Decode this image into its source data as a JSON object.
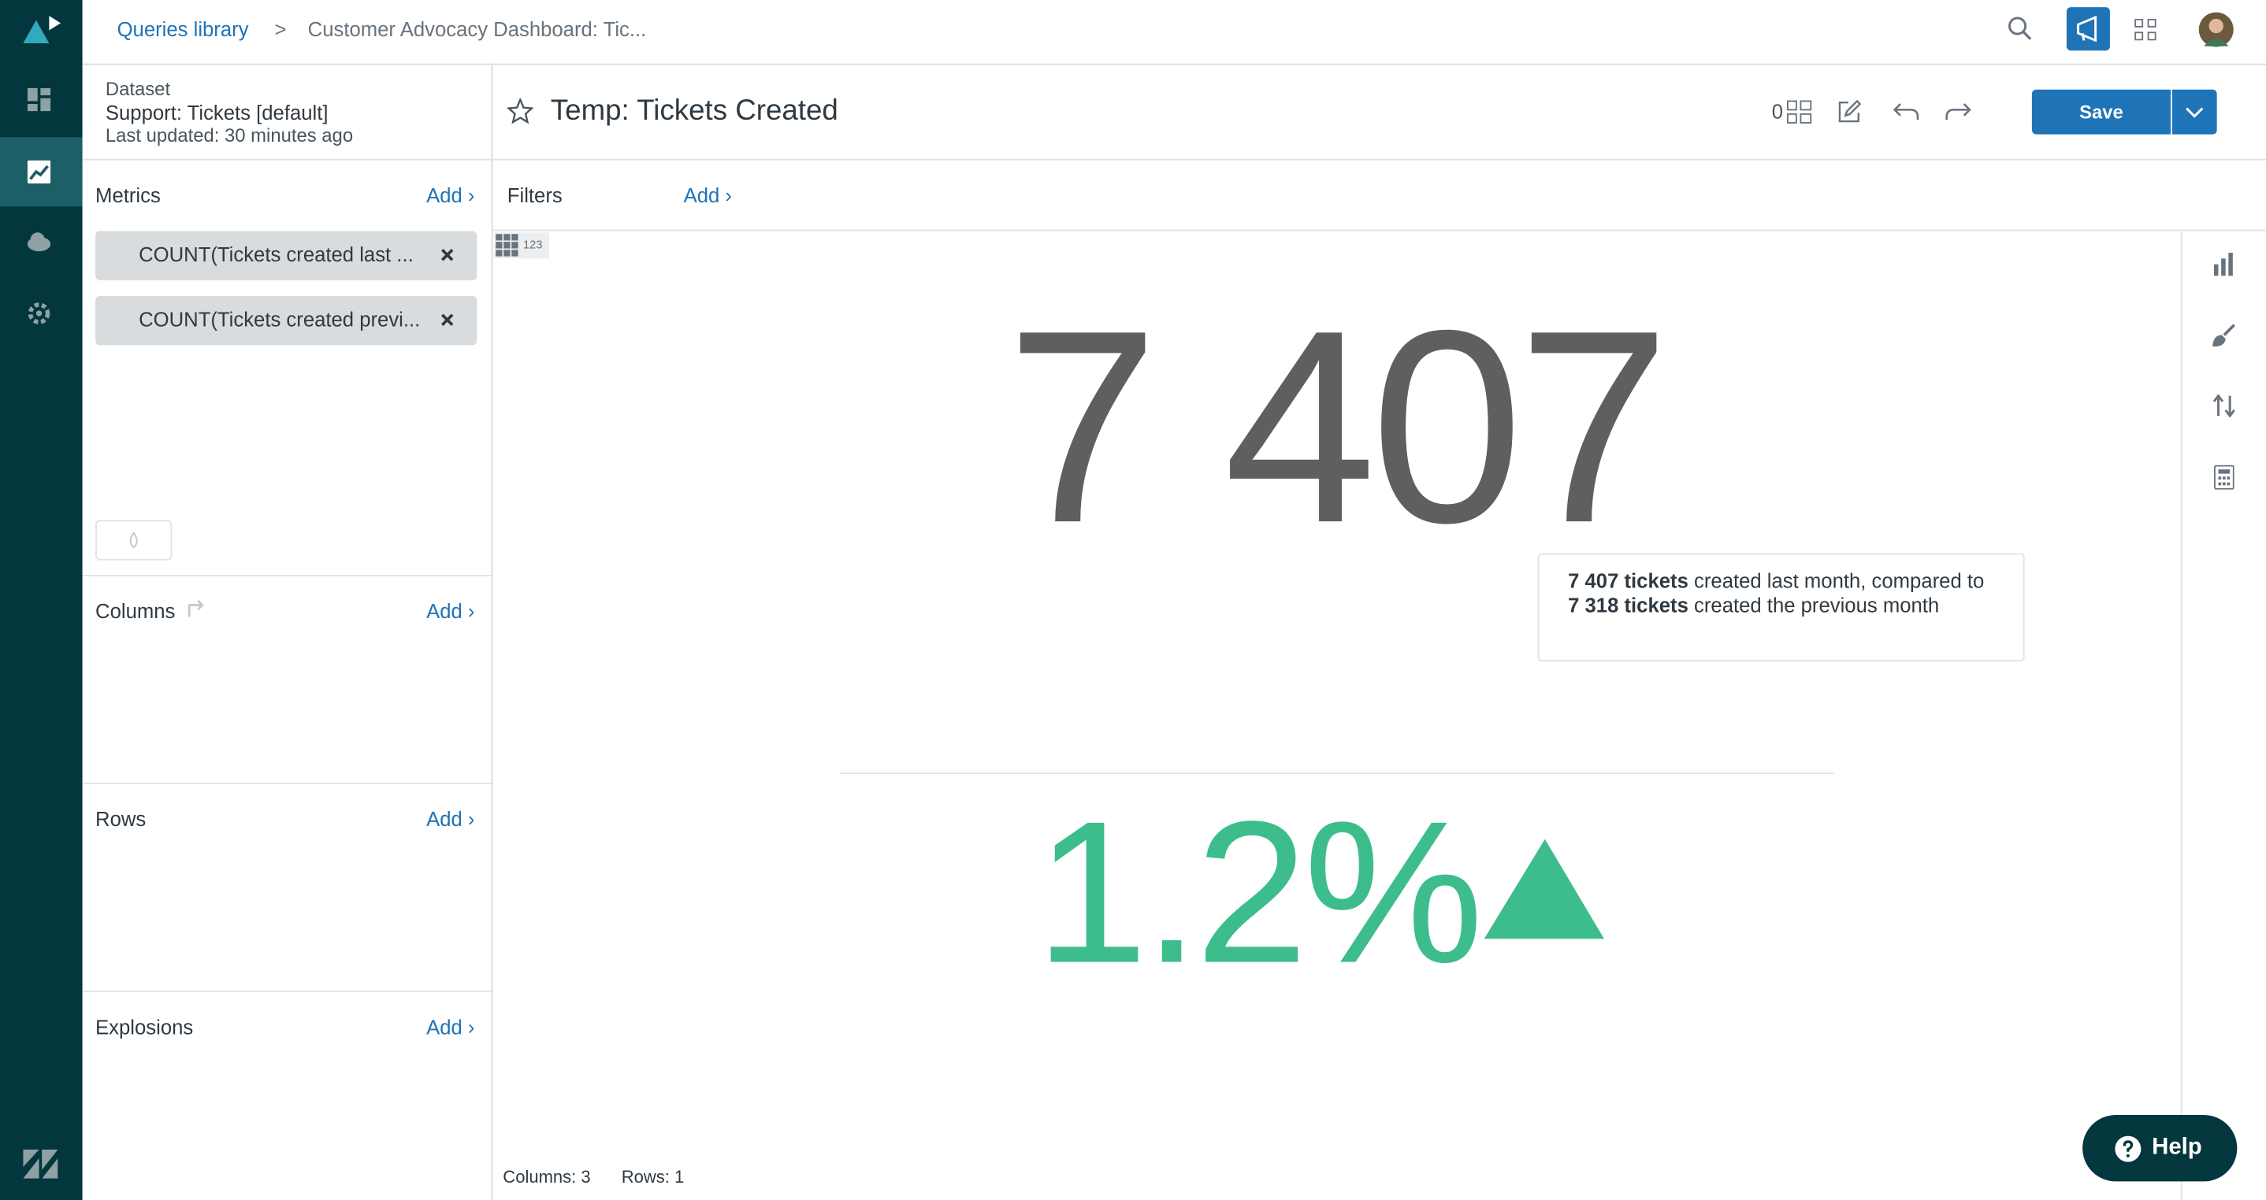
{
  "breadcrumb": {
    "link": "Queries library",
    "separator": ">",
    "current": "Customer Advocacy Dashboard: Tic..."
  },
  "dataset": {
    "label": "Dataset",
    "name": "Support: Tickets [default]",
    "updated": "Last updated: 30 minutes ago"
  },
  "query": {
    "title": "Temp: Tickets Created",
    "count": "0",
    "save": "Save"
  },
  "panels": {
    "metrics": {
      "title": "Metrics",
      "add": "Add ›",
      "items": [
        "COUNT(Tickets created last ...",
        "COUNT(Tickets created previ..."
      ]
    },
    "filters": {
      "title": "Filters",
      "add": "Add ›"
    },
    "columns": {
      "title": "Columns",
      "add": "Add ›"
    },
    "rows": {
      "title": "Rows",
      "add": "Add ›"
    },
    "explosions": {
      "title": "Explosions",
      "add": "Add ›"
    }
  },
  "result": {
    "format_badge": "123",
    "value": "7 407",
    "summary": {
      "a": "7 407 tickets",
      "b": " created last month, compared to ",
      "c": "7 318 tickets",
      "d": " created the previous month"
    },
    "change": "1.2%"
  },
  "footer": {
    "columns": "Columns: 3",
    "rows": "Rows: 1"
  },
  "help": "Help"
}
